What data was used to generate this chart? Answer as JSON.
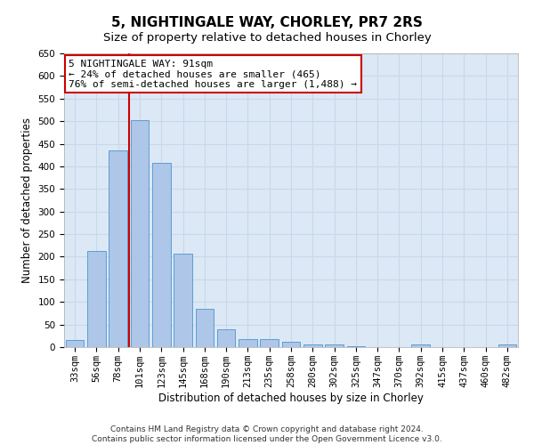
{
  "title": "5, NIGHTINGALE WAY, CHORLEY, PR7 2RS",
  "subtitle": "Size of property relative to detached houses in Chorley",
  "xlabel": "Distribution of detached houses by size in Chorley",
  "ylabel": "Number of detached properties",
  "categories": [
    "33sqm",
    "56sqm",
    "78sqm",
    "101sqm",
    "123sqm",
    "145sqm",
    "168sqm",
    "190sqm",
    "213sqm",
    "235sqm",
    "258sqm",
    "280sqm",
    "302sqm",
    "325sqm",
    "347sqm",
    "370sqm",
    "392sqm",
    "415sqm",
    "437sqm",
    "460sqm",
    "482sqm"
  ],
  "values": [
    16,
    212,
    435,
    503,
    407,
    207,
    85,
    39,
    17,
    17,
    11,
    6,
    5,
    2,
    0,
    0,
    5,
    0,
    0,
    0,
    5
  ],
  "bar_color": "#aec6e8",
  "bar_edgecolor": "#5a9fd4",
  "vline_color": "#cc0000",
  "vline_x": 2.5,
  "annotation_text": "5 NIGHTINGALE WAY: 91sqm\n← 24% of detached houses are smaller (465)\n76% of semi-detached houses are larger (1,488) →",
  "annotation_box_edgecolor": "#cc0000",
  "annotation_box_facecolor": "#ffffff",
  "ylim": [
    0,
    650
  ],
  "yticks": [
    0,
    50,
    100,
    150,
    200,
    250,
    300,
    350,
    400,
    450,
    500,
    550,
    600,
    650
  ],
  "footnote": "Contains HM Land Registry data © Crown copyright and database right 2024.\nContains public sector information licensed under the Open Government Licence v3.0.",
  "background_color": "#ffffff",
  "grid_color": "#c8d8e8",
  "plot_bg_color": "#dce8f5",
  "title_fontsize": 11,
  "subtitle_fontsize": 9.5,
  "axis_label_fontsize": 8.5,
  "tick_fontsize": 7.5,
  "annotation_fontsize": 8,
  "footnote_fontsize": 6.5
}
